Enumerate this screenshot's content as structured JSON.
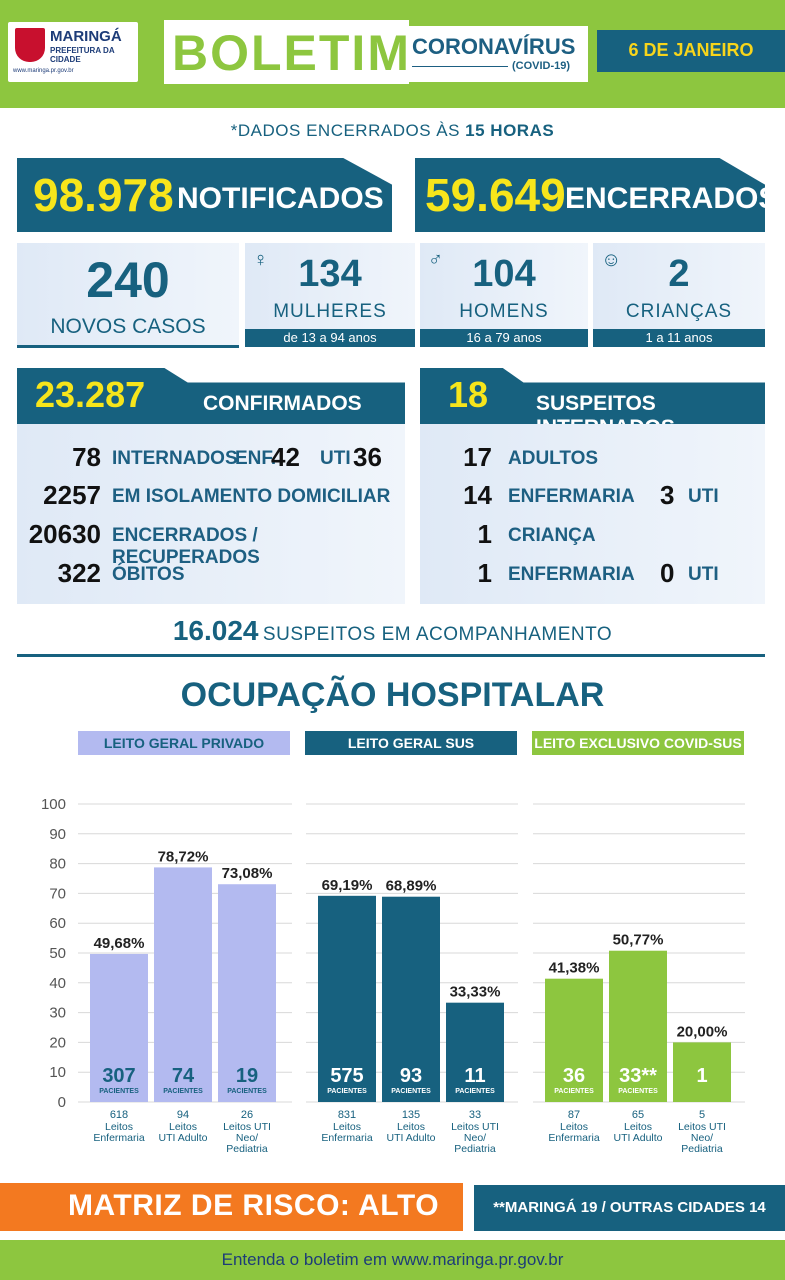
{
  "header": {
    "logo_name": "MARINGÁ",
    "logo_sub": "PREFEITURA DA CIDADE",
    "logo_url": "www.maringa.pr.gov.br",
    "title": "BOLETIM",
    "subtitle_main": "CORONAVÍRUS",
    "subtitle_small": "(COVID-19)",
    "date": "6 DE JANEIRO"
  },
  "note": {
    "prefix": "*DADOS ENCERRADOS ÀS ",
    "hour": "15 HORAS"
  },
  "totals": {
    "notified_value": "98.978",
    "notified_label": "NOTIFICADOS",
    "closed_value": "59.649",
    "closed_label": "ENCERRADOS"
  },
  "new_cases": {
    "value": "240",
    "label": "NOVOS CASOS",
    "women": {
      "value": "134",
      "label": "MULHERES",
      "ages": "de 13 a 94 anos",
      "icon": "woman-icon"
    },
    "men": {
      "value": "104",
      "label": "HOMENS",
      "ages": "16 a 79 anos",
      "icon": "man-icon"
    },
    "children": {
      "value": "2",
      "label": "CRIANÇAS",
      "ages": "1 a 11 anos",
      "icon": "baby-icon"
    }
  },
  "confirmed": {
    "value": "23.287",
    "label": "CONFIRMADOS",
    "hospitalized_value": "78",
    "hospitalized_label": "INTERNADOS",
    "ward_label": "ENF.",
    "ward_value": "42",
    "icu_label": "UTI",
    "icu_value": "36",
    "home_value": "2257",
    "home_label": "EM ISOLAMENTO DOMICILIAR",
    "recovered_value": "20630",
    "recovered_label": "ENCERRADOS / RECUPERADOS",
    "deaths_value": "322",
    "deaths_label": "ÓBITOS"
  },
  "suspects": {
    "value": "18",
    "label": "SUSPEITOS INTERNADOS",
    "adults_value": "17",
    "adults_label": "ADULTOS",
    "adult_ward_value": "14",
    "adult_ward_label": "ENFERMARIA",
    "adult_icu_value": "3",
    "adult_icu_label": "UTI",
    "child_value": "1",
    "child_label": "CRIANÇA",
    "child_ward_value": "1",
    "child_ward_label": "ENFERMARIA",
    "child_icu_value": "0",
    "child_icu_label": "UTI"
  },
  "follow_up": {
    "value": "16.024",
    "label": "SUSPEITOS EM ACOMPANHAMENTO"
  },
  "hospital_title": "OCUPAÇÃO HOSPITALAR",
  "chart_data": {
    "type": "bar",
    "title": "OCUPAÇÃO HOSPITALAR",
    "ylim": [
      0,
      100
    ],
    "yticks": [
      "0",
      "10",
      "20",
      "30",
      "40",
      "50",
      "60",
      "70",
      "80",
      "90",
      "100"
    ],
    "grid": true,
    "patients_label": "PACIENTES",
    "groups": [
      {
        "name": "LEITO GERAL PRIVADO",
        "color": "#b3baf0",
        "label_color": "#17617f",
        "bars": [
          {
            "value": 49.68,
            "label": "49,68%",
            "patients": "307",
            "beds": "618",
            "desc": [
              "Leitos",
              "Enfermaria"
            ]
          },
          {
            "value": 78.72,
            "label": "78,72%",
            "patients": "74",
            "beds": "94",
            "desc": [
              "Leitos",
              "UTI Adulto"
            ]
          },
          {
            "value": 73.08,
            "label": "73,08%",
            "patients": "19",
            "beds": "26",
            "desc": [
              "Leitos UTI",
              "Neo/",
              "Pediatria"
            ]
          }
        ]
      },
      {
        "name": "LEITO GERAL SUS",
        "color": "#17617f",
        "label_color": "#ffffff",
        "bars": [
          {
            "value": 69.19,
            "label": "69,19%",
            "patients": "575",
            "beds": "831",
            "desc": [
              "Leitos",
              "Enfermaria"
            ]
          },
          {
            "value": 68.89,
            "label": "68,89%",
            "patients": "93",
            "beds": "135",
            "desc": [
              "Leitos",
              "UTI Adulto"
            ]
          },
          {
            "value": 33.33,
            "label": "33,33%",
            "patients": "11",
            "beds": "33",
            "desc": [
              "Leitos UTI",
              "Neo/",
              "Pediatria"
            ]
          }
        ]
      },
      {
        "name": "LEITO EXCLUSIVO COVID-SUS",
        "color": "#8dc63f",
        "label_color": "#ffffff",
        "bars": [
          {
            "value": 41.38,
            "label": "41,38%",
            "patients": "36",
            "beds": "87",
            "desc": [
              "Leitos",
              "Enfermaria"
            ]
          },
          {
            "value": 50.77,
            "label": "50,77%",
            "patients": "33**",
            "beds": "65",
            "desc": [
              "Leitos",
              "UTI Adulto"
            ]
          },
          {
            "value": 20.0,
            "label": "20,00%",
            "patients": "1",
            "beds": "5",
            "desc": [
              "Leitos UTI",
              "Neo/",
              "Pediatria"
            ]
          }
        ]
      }
    ]
  },
  "risk": {
    "label": "MATRIZ DE RISCO: ALTO",
    "cities": "**MARINGÁ 19 / OUTRAS CIDADES 14"
  },
  "footer": "Entenda o boletim em www.maringa.pr.gov.br",
  "colors": {
    "green": "#8dc63f",
    "navy": "#17617f",
    "yellow": "#f7e51b",
    "orange": "#f37920",
    "lavender": "#b3baf0"
  }
}
